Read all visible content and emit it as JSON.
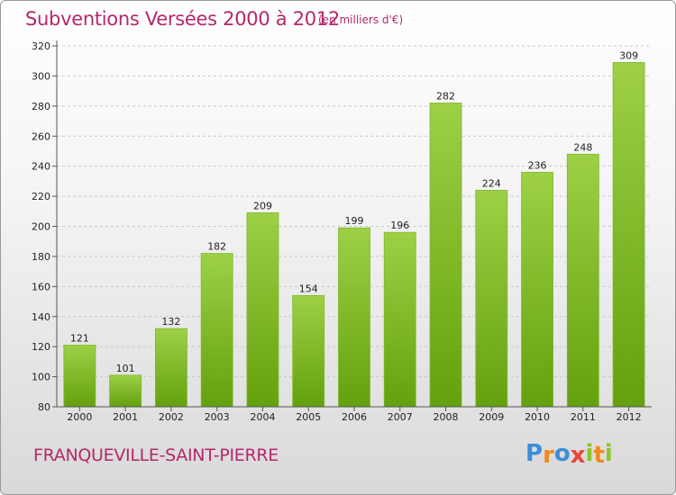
{
  "chart_data": {
    "type": "bar",
    "title": "Subventions Versées 2000 à 2012",
    "subtitle": "(en milliers d'€)",
    "categories": [
      "2000",
      "2001",
      "2002",
      "2003",
      "2004",
      "2005",
      "2006",
      "2007",
      "2008",
      "2009",
      "2010",
      "2011",
      "2012"
    ],
    "values": [
      121,
      101,
      132,
      182,
      209,
      154,
      199,
      196,
      282,
      224,
      236,
      248,
      309
    ],
    "xlabel": "",
    "ylabel": "",
    "ylim": [
      80,
      320
    ],
    "yticks": [
      80,
      100,
      120,
      140,
      160,
      180,
      200,
      220,
      240,
      260,
      280,
      300,
      320
    ],
    "grid": true,
    "bar_color_top": "#9dd046",
    "bar_color_bottom": "#64a10e"
  },
  "footer": {
    "commune": "FRANQUEVILLE-SAINT-PIERRE"
  },
  "logo": {
    "text": "Proxiti",
    "letters": [
      "P",
      "r",
      "o",
      "x",
      "i",
      "t",
      "i"
    ],
    "colors": [
      "#3a8fd8",
      "#f08a1c",
      "#3a8fd8",
      "#e8453c",
      "#8fc42a",
      "#f08a1c",
      "#8fc42a"
    ]
  }
}
